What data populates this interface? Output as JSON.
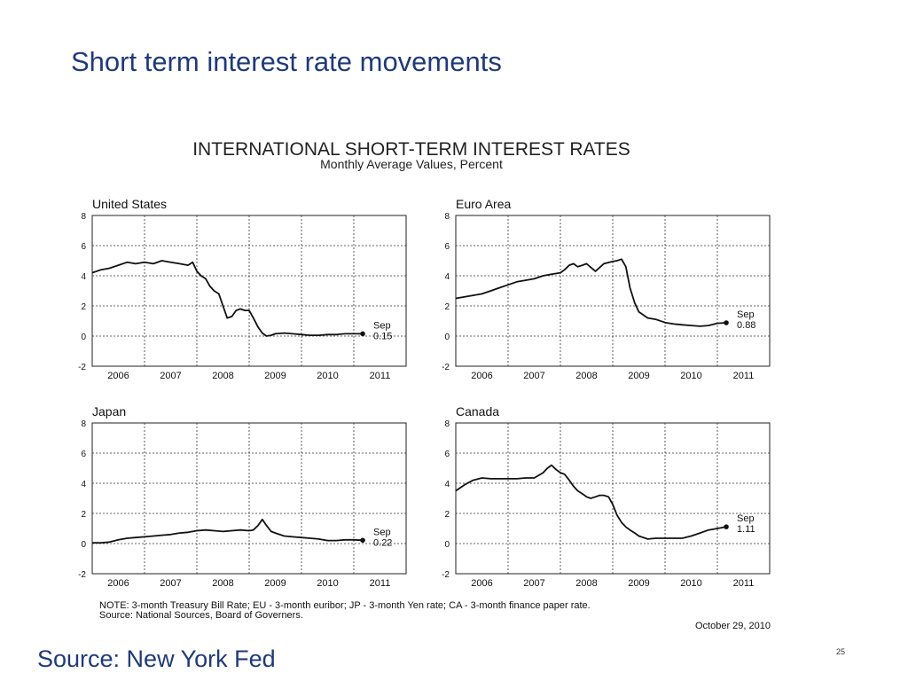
{
  "slide": {
    "title": "Short term interest rate movements",
    "source": "Source: New York Fed",
    "page_number": "25"
  },
  "chart_data": {
    "type": "line",
    "title": "INTERNATIONAL SHORT-TERM INTEREST RATES",
    "subtitle": "Monthly Average Values, Percent",
    "note_line1": "NOTE:  3-month Treasury Bill Rate; EU - 3-month euribor; JP - 3-month Yen rate; CA - 3-month finance paper rate.",
    "note_line2": "Source:  National Sources, Board of Governers.",
    "date": "October 29, 2010",
    "ylim": [
      -2,
      8
    ],
    "xlim": [
      2005.5,
      2011.5
    ],
    "grid": true,
    "yticks": [
      "8",
      "6",
      "4",
      "2",
      "0",
      "-2"
    ],
    "xticks": [
      "2006",
      "2007",
      "2008",
      "2009",
      "2010",
      "2011"
    ],
    "panels": [
      {
        "name": "United States",
        "annotation": [
          "Sep",
          "0.15"
        ],
        "last_value": 0.15,
        "x": [
          2005.5,
          2005.67,
          2005.83,
          2006.0,
          2006.17,
          2006.33,
          2006.5,
          2006.67,
          2006.83,
          2007.0,
          2007.17,
          2007.33,
          2007.42,
          2007.5,
          2007.58,
          2007.67,
          2007.75,
          2007.83,
          2007.92,
          2008.0,
          2008.08,
          2008.17,
          2008.25,
          2008.33,
          2008.42,
          2008.5,
          2008.58,
          2008.67,
          2008.75,
          2008.83,
          2008.92,
          2009.0,
          2009.17,
          2009.33,
          2009.5,
          2009.67,
          2009.83,
          2010.0,
          2010.17,
          2010.33,
          2010.5,
          2010.67
        ],
        "y": [
          4.2,
          4.4,
          4.5,
          4.7,
          4.9,
          4.8,
          4.9,
          4.8,
          5.0,
          4.9,
          4.8,
          4.7,
          4.9,
          4.3,
          4.0,
          3.8,
          3.3,
          3.0,
          2.8,
          2.0,
          1.2,
          1.3,
          1.7,
          1.8,
          1.7,
          1.7,
          1.2,
          0.6,
          0.2,
          0.0,
          0.05,
          0.15,
          0.2,
          0.15,
          0.1,
          0.05,
          0.05,
          0.1,
          0.1,
          0.15,
          0.15,
          0.15
        ]
      },
      {
        "name": "Euro Area",
        "annotation": [
          "Sep",
          "0.88"
        ],
        "last_value": 0.88,
        "x": [
          2005.5,
          2005.67,
          2005.83,
          2006.0,
          2006.17,
          2006.33,
          2006.5,
          2006.67,
          2006.83,
          2007.0,
          2007.17,
          2007.33,
          2007.5,
          2007.58,
          2007.67,
          2007.75,
          2007.83,
          2007.92,
          2008.0,
          2008.17,
          2008.33,
          2008.5,
          2008.58,
          2008.67,
          2008.75,
          2008.83,
          2008.92,
          2009.0,
          2009.17,
          2009.33,
          2009.5,
          2009.67,
          2009.83,
          2010.0,
          2010.17,
          2010.33,
          2010.5,
          2010.67
        ],
        "y": [
          2.5,
          2.6,
          2.7,
          2.8,
          3.0,
          3.2,
          3.4,
          3.6,
          3.7,
          3.8,
          4.0,
          4.1,
          4.2,
          4.4,
          4.7,
          4.8,
          4.6,
          4.7,
          4.8,
          4.3,
          4.8,
          4.95,
          5.0,
          5.1,
          4.6,
          3.2,
          2.2,
          1.6,
          1.2,
          1.1,
          0.9,
          0.8,
          0.75,
          0.7,
          0.65,
          0.7,
          0.85,
          0.88
        ]
      },
      {
        "name": "Japan",
        "annotation": [
          "Sep",
          "0.22"
        ],
        "last_value": 0.22,
        "x": [
          2005.5,
          2005.67,
          2005.83,
          2006.0,
          2006.17,
          2006.33,
          2006.5,
          2006.67,
          2006.83,
          2007.0,
          2007.17,
          2007.33,
          2007.5,
          2007.67,
          2007.83,
          2008.0,
          2008.17,
          2008.33,
          2008.5,
          2008.58,
          2008.67,
          2008.75,
          2008.83,
          2008.92,
          2009.0,
          2009.17,
          2009.33,
          2009.5,
          2009.67,
          2009.83,
          2010.0,
          2010.17,
          2010.33,
          2010.5,
          2010.67
        ],
        "y": [
          0.05,
          0.05,
          0.1,
          0.25,
          0.35,
          0.4,
          0.45,
          0.5,
          0.55,
          0.6,
          0.7,
          0.75,
          0.85,
          0.9,
          0.85,
          0.8,
          0.85,
          0.9,
          0.85,
          0.9,
          1.2,
          1.6,
          1.2,
          0.8,
          0.7,
          0.5,
          0.45,
          0.4,
          0.35,
          0.3,
          0.2,
          0.2,
          0.25,
          0.25,
          0.22
        ]
      },
      {
        "name": "Canada",
        "annotation": [
          "Sep",
          "1.11"
        ],
        "last_value": 1.11,
        "x": [
          2005.5,
          2005.67,
          2005.83,
          2006.0,
          2006.17,
          2006.33,
          2006.5,
          2006.67,
          2006.83,
          2007.0,
          2007.17,
          2007.25,
          2007.33,
          2007.42,
          2007.5,
          2007.58,
          2007.67,
          2007.75,
          2007.83,
          2007.92,
          2008.0,
          2008.08,
          2008.17,
          2008.25,
          2008.33,
          2008.42,
          2008.5,
          2008.58,
          2008.67,
          2008.75,
          2008.83,
          2008.92,
          2009.0,
          2009.17,
          2009.33,
          2009.5,
          2009.67,
          2009.83,
          2010.0,
          2010.17,
          2010.33,
          2010.5,
          2010.67
        ],
        "y": [
          3.5,
          3.9,
          4.2,
          4.35,
          4.3,
          4.3,
          4.3,
          4.3,
          4.35,
          4.35,
          4.7,
          5.0,
          5.2,
          4.9,
          4.7,
          4.6,
          4.2,
          3.8,
          3.5,
          3.3,
          3.1,
          3.0,
          3.1,
          3.2,
          3.2,
          3.1,
          2.6,
          1.9,
          1.4,
          1.1,
          0.9,
          0.7,
          0.5,
          0.3,
          0.35,
          0.35,
          0.35,
          0.35,
          0.5,
          0.7,
          0.9,
          1.0,
          1.11
        ]
      }
    ]
  }
}
